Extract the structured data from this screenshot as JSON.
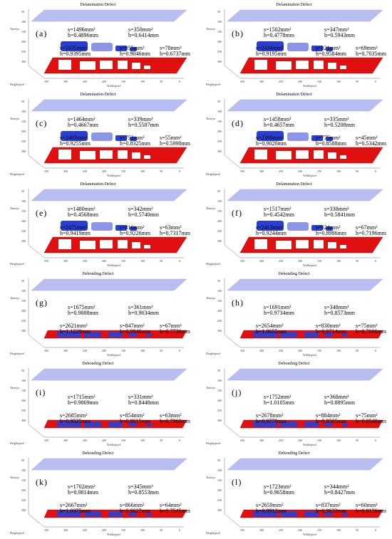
{
  "figure": {
    "panels": [
      {
        "tag": "(a)",
        "title": "Delamination Defect",
        "type": "delamination",
        "upper": [
          {
            "s": "s=1496mm²",
            "h": "h=0.4896mm"
          },
          {
            "s": "s=350mm²",
            "h": "h=0.6414mm"
          }
        ],
        "lower": [
          {
            "s": "s=2435mm²",
            "h": "h=0.9395mm"
          },
          {
            "s": "s=855mm²",
            "h": "h=0.9046mm"
          },
          {
            "s": "s=78mm²",
            "h": "h=0.6737mm"
          }
        ]
      },
      {
        "tag": "(b)",
        "title": "Delamination Defect",
        "type": "delamination",
        "upper": [
          {
            "s": "s=1502mm²",
            "h": "h=0.4778mm"
          },
          {
            "s": "s=347mm²",
            "h": "h=0.5943mm"
          }
        ],
        "lower": [
          {
            "s": "s=2434mm²",
            "h": "h=0.9195mm"
          },
          {
            "s": "s=821mm²",
            "h": "h=0.9584mm"
          },
          {
            "s": "s=69mm²",
            "h": "h=0.7035mm"
          }
        ]
      },
      {
        "tag": "(c)",
        "title": "Delamination Defect",
        "type": "delamination",
        "upper": [
          {
            "s": "s=1464mm²",
            "h": "h=0.4667mm"
          },
          {
            "s": "s=339mm²",
            "h": "h=0.5587mm"
          }
        ],
        "lower": [
          {
            "s": "s=2403mm²",
            "h": "h=0.9255mm"
          },
          {
            "s": "s=752mm²",
            "h": "h=0.8325mm"
          },
          {
            "s": "s=55mm²",
            "h": "h=0.5990mm"
          }
        ]
      },
      {
        "tag": "(d)",
        "title": "Delamination Defect",
        "type": "delamination",
        "upper": [
          {
            "s": "s=1458mm²",
            "h": "h=0.4657mm"
          },
          {
            "s": "s=335mm²",
            "h": "h=0.5208mm"
          }
        ],
        "lower": [
          {
            "s": "s=2399mm²",
            "h": "h=0.9020mm"
          },
          {
            "s": "s=775mm²",
            "h": "h=0.8588mm"
          },
          {
            "s": "s=45mm²",
            "h": "h=0.5342mm"
          }
        ]
      },
      {
        "tag": "(e)",
        "title": "Delamination Defect",
        "type": "delamination",
        "upper": [
          {
            "s": "s=1480mm²",
            "h": "h=0.4568mm"
          },
          {
            "s": "s=342mm²",
            "h": "h=0.5740mm"
          }
        ],
        "lower": [
          {
            "s": "s=2475mm²",
            "h": "h=0.9419mm"
          },
          {
            "s": "s=816mm²",
            "h": "h=0.9226mm"
          },
          {
            "s": "s=63mm²",
            "h": "h=0.7317mm"
          }
        ]
      },
      {
        "tag": "(f)",
        "title": "Delamination Defect",
        "type": "delamination",
        "upper": [
          {
            "s": "s=1517mm²",
            "h": "h=0.4542mm"
          },
          {
            "s": "s=338mm²",
            "h": "h=0.5841mm"
          }
        ],
        "lower": [
          {
            "s": "s=2413mm²",
            "h": "h=0.9244mm"
          },
          {
            "s": "s=824mm²",
            "h": "h=0.8986mm"
          },
          {
            "s": "s=67mm²",
            "h": "h=0.7196mm"
          }
        ]
      },
      {
        "tag": "(g)",
        "title": "Debonding Defect",
        "type": "debonding",
        "upper": [
          {
            "s": "s=1675mm²",
            "h": "h=0.9888mm"
          },
          {
            "s": "s=361mm²",
            "h": "h=0.9034mm"
          }
        ],
        "lower": [
          {
            "s": "s=2621mm²",
            "h": "h=1.1229mm"
          },
          {
            "s": "s=847mm²",
            "h": "h=0.9946mm"
          },
          {
            "s": "s=67mm²",
            "h": "h=0.7736mm"
          }
        ]
      },
      {
        "tag": "(h)",
        "title": "Debonding Defect",
        "type": "debonding",
        "upper": [
          {
            "s": "s=1691mm²",
            "h": "h=0.9734mm"
          },
          {
            "s": "s=348mm²",
            "h": "h=0.8573mm"
          }
        ],
        "lower": [
          {
            "s": "s=2654mm²",
            "h": "h=1.0655mm"
          },
          {
            "s": "s=830mm²",
            "h": "h=0.9714mm"
          },
          {
            "s": "s=75mm²",
            "h": "h=0.7606mm"
          }
        ]
      },
      {
        "tag": "(i)",
        "title": "Debonding Defect",
        "type": "debonding",
        "upper": [
          {
            "s": "s=1715mm²",
            "h": "h=0.9869mm"
          },
          {
            "s": "s=331mm²",
            "h": "h=0.8448mm"
          }
        ],
        "lower": [
          {
            "s": "s=2685mm²",
            "h": "h=0.9525mm"
          },
          {
            "s": "s=854mm²",
            "h": "h=0.9615mm"
          },
          {
            "s": "s=63mm²",
            "h": "h=0.7960mm"
          }
        ]
      },
      {
        "tag": "(j)",
        "title": "Debonding Defect",
        "type": "debonding",
        "upper": [
          {
            "s": "s=1752mm²",
            "h": "h=1.0105mm"
          },
          {
            "s": "s=368mm²",
            "h": "h=0.8895mm"
          }
        ],
        "lower": [
          {
            "s": "s=2678mm²",
            "h": "h=0.9779mm"
          },
          {
            "s": "s=884mm²",
            "h": "h=0.9505mm"
          },
          {
            "s": "s=75mm²",
            "h": "h=0.8540mm"
          }
        ]
      },
      {
        "tag": "(k)",
        "title": "Debonding Defect",
        "type": "debonding",
        "upper": [
          {
            "s": "s=1702mm²",
            "h": "h=0.9814mm"
          },
          {
            "s": "s=345mm²",
            "h": "h=0.8553mm"
          }
        ],
        "lower": [
          {
            "s": "s=2667mm²",
            "h": "h=1.0375mm"
          },
          {
            "s": "s=866mm²",
            "h": "h=0.9627mm"
          },
          {
            "s": "s=64mm²",
            "h": "h=0.7545mm"
          }
        ]
      },
      {
        "tag": "(l)",
        "title": "Debonding Defect",
        "type": "debonding",
        "upper": [
          {
            "s": "s=1723mm²",
            "h": "h=0.9658mm"
          },
          {
            "s": "s=344mm²",
            "h": "h=0.8427mm"
          }
        ],
        "lower": [
          {
            "s": "s=2659mm²",
            "h": "h=0.9912mm"
          },
          {
            "s": "s=837mm²",
            "h": "h=0.9633mm"
          },
          {
            "s": "s=60mm²",
            "h": "h=0.8156mm"
          }
        ]
      }
    ],
    "axes": {
      "time_label": "Time/μs",
      "width_label": "Width/pixel",
      "height_label": "Height/pixel",
      "time_ticks": [
        "50",
        "100",
        "150",
        "200",
        "250",
        "300"
      ],
      "width_ticks": [
        "350",
        "300",
        "250",
        "200",
        "150",
        "100",
        "50",
        "0"
      ],
      "height_ticks": [
        "50",
        "0"
      ]
    },
    "colors": {
      "plane": "#b8bff0",
      "plane_edge": "#9aa2e6",
      "red": "#e01010",
      "blue": "#2a3fd0",
      "blue_light": "#8c95e6"
    }
  }
}
